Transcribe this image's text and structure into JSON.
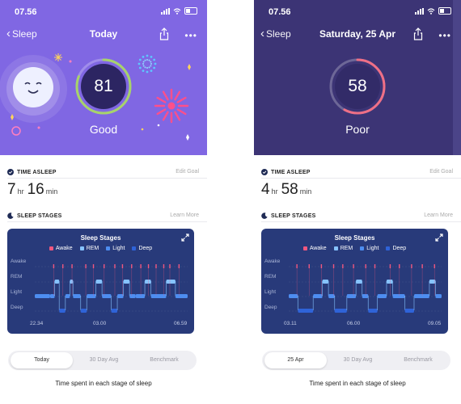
{
  "screens": [
    {
      "status_time": "07.56",
      "nav": {
        "back_label": "Sleep",
        "title": "Today"
      },
      "score": {
        "value": "81",
        "label": "Good",
        "fraction": 0.81,
        "ring_color": "#a7d36a"
      },
      "time_asleep": {
        "heading": "TIME ASLEEP",
        "edit_label": "Edit Goal",
        "hours": "7",
        "hours_unit": "hr",
        "minutes": "16",
        "minutes_unit": "min"
      },
      "sleep_stages": {
        "heading": "SLEEP STAGES",
        "learn_more": "Learn More"
      },
      "chart_data": {
        "type": "line",
        "title": "Sleep Stages",
        "legend": [
          "Awake",
          "REM",
          "Light",
          "Deep"
        ],
        "stages": [
          "Awake",
          "REM",
          "Light",
          "Deep"
        ],
        "x_ticks": [
          "22.34",
          "03.00",
          "06.59"
        ],
        "segments": [
          [
            0.0,
            2
          ],
          [
            0.1,
            2
          ],
          [
            0.13,
            1
          ],
          [
            0.16,
            3
          ],
          [
            0.2,
            2
          ],
          [
            0.23,
            1
          ],
          [
            0.25,
            2
          ],
          [
            0.3,
            3
          ],
          [
            0.34,
            2
          ],
          [
            0.4,
            1
          ],
          [
            0.44,
            2
          ],
          [
            0.5,
            3
          ],
          [
            0.54,
            2
          ],
          [
            0.58,
            1
          ],
          [
            0.62,
            2
          ],
          [
            0.66,
            2
          ],
          [
            0.72,
            1
          ],
          [
            0.76,
            2
          ],
          [
            0.86,
            1
          ],
          [
            0.92,
            2
          ],
          [
            1.0,
            2
          ]
        ],
        "awake_marks": [
          0.12,
          0.18,
          0.24,
          0.33,
          0.38,
          0.45,
          0.52,
          0.57,
          0.63,
          0.69,
          0.74,
          0.79,
          0.84,
          0.88,
          0.94
        ]
      },
      "tabs": [
        "Today",
        "30 Day Avg",
        "Benchmark"
      ],
      "active_tab": 0,
      "footer": "Time spent in each stage of sleep"
    },
    {
      "status_time": "07.56",
      "nav": {
        "back_label": "Sleep",
        "title": "Saturday, 25 Apr"
      },
      "score": {
        "value": "58",
        "label": "Poor",
        "fraction": 0.58,
        "ring_color": "#ef6f86"
      },
      "time_asleep": {
        "heading": "TIME ASLEEP",
        "edit_label": "Edit Goal",
        "hours": "4",
        "hours_unit": "hr",
        "minutes": "58",
        "minutes_unit": "min"
      },
      "sleep_stages": {
        "heading": "SLEEP STAGES",
        "learn_more": "Learn More"
      },
      "chart_data": {
        "type": "line",
        "title": "Sleep Stages",
        "legend": [
          "Awake",
          "REM",
          "Light",
          "Deep"
        ],
        "stages": [
          "Awake",
          "REM",
          "Light",
          "Deep"
        ],
        "x_ticks": [
          "03.11",
          "06.00",
          "09.05"
        ],
        "segments": [
          [
            0.0,
            2
          ],
          [
            0.06,
            3
          ],
          [
            0.16,
            2
          ],
          [
            0.22,
            1
          ],
          [
            0.26,
            2
          ],
          [
            0.3,
            3
          ],
          [
            0.38,
            2
          ],
          [
            0.44,
            1
          ],
          [
            0.48,
            2
          ],
          [
            0.52,
            3
          ],
          [
            0.58,
            2
          ],
          [
            0.64,
            1
          ],
          [
            0.68,
            2
          ],
          [
            0.76,
            3
          ],
          [
            0.82,
            2
          ],
          [
            0.92,
            1
          ],
          [
            0.96,
            2
          ],
          [
            1.0,
            2
          ]
        ],
        "awake_marks": [
          0.05,
          0.13,
          0.21,
          0.29,
          0.35,
          0.42,
          0.5,
          0.56,
          0.66,
          0.72,
          0.8,
          0.87,
          0.95
        ]
      },
      "tabs": [
        "25 Apr",
        "30 Day Avg",
        "Benchmark"
      ],
      "active_tab": 0,
      "footer": "Time spent in each stage of sleep"
    }
  ],
  "colors": {
    "awake": "#f0577f",
    "rem": "#86c3ff",
    "light": "#4d8df0",
    "deep": "#2f63d8"
  }
}
